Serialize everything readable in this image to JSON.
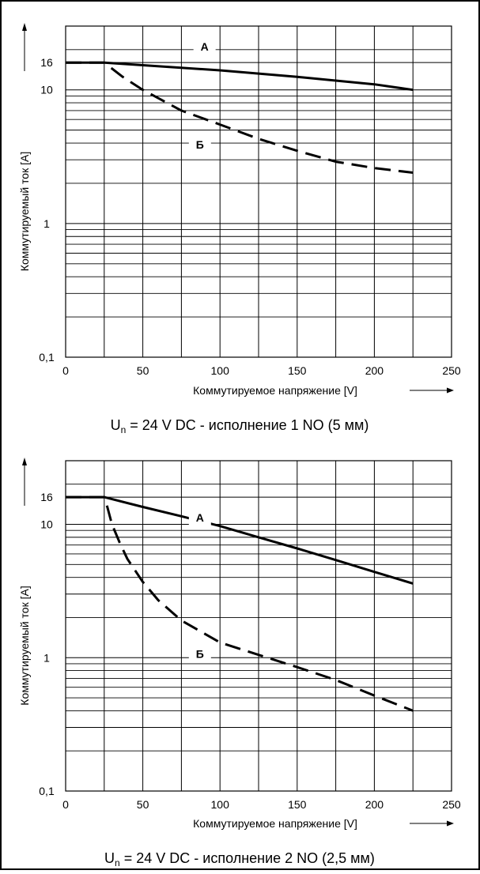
{
  "chart_data": [
    {
      "type": "line",
      "title": "",
      "caption_main": "U",
      "caption_sub": "n",
      "caption_rest": " = 24 V DC - исполнение 1 NO (5 мм)",
      "xlabel": "Коммутируемое напряжение [V]",
      "ylabel": "Коммутируемый ток [A]",
      "xlim": [
        0,
        250
      ],
      "ylim": [
        0.1,
        30
      ],
      "yscale": "log",
      "grid": true,
      "xticks": [
        "0",
        "50",
        "100",
        "150",
        "200",
        "250"
      ],
      "yticks": [
        {
          "value": 0.1,
          "label": "0,1"
        },
        {
          "value": 1,
          "label": "1"
        },
        {
          "value": 10,
          "label": "10"
        },
        {
          "value": 16,
          "label": "16"
        }
      ],
      "series": [
        {
          "name": "А",
          "style": "solid",
          "label_x": 90,
          "label_y": 21,
          "x": [
            0,
            25,
            50,
            100,
            150,
            200,
            225
          ],
          "y": [
            16,
            16,
            15.3,
            14,
            12.5,
            11,
            10
          ]
        },
        {
          "name": "Б",
          "style": "dashed",
          "label_x": 87,
          "label_y": 3.9,
          "x": [
            0,
            25,
            37,
            50,
            75,
            100,
            125,
            150,
            175,
            200,
            225
          ],
          "y": [
            16,
            16,
            12.5,
            10,
            7,
            5.5,
            4.3,
            3.5,
            2.9,
            2.6,
            2.4
          ]
        }
      ]
    },
    {
      "type": "line",
      "title": "",
      "caption_main": "U",
      "caption_sub": "n",
      "caption_rest": " = 24 V DC - исполнение 2 NO (2,5 мм)",
      "xlabel": "Коммутируемое напряжение [V]",
      "ylabel": "Коммутируемый ток [A]",
      "xlim": [
        0,
        250
      ],
      "ylim": [
        0.1,
        30
      ],
      "yscale": "log",
      "grid": true,
      "xticks": [
        "0",
        "50",
        "100",
        "150",
        "200",
        "250"
      ],
      "yticks": [
        {
          "value": 0.1,
          "label": "0,1"
        },
        {
          "value": 1,
          "label": "1"
        },
        {
          "value": 10,
          "label": "10"
        },
        {
          "value": 16,
          "label": "16"
        }
      ],
      "series": [
        {
          "name": "А",
          "style": "solid",
          "label_x": 87,
          "label_y": 11.2,
          "x": [
            0,
            25,
            50,
            75,
            100,
            125,
            150,
            175,
            200,
            225
          ],
          "y": [
            16,
            16,
            13.5,
            11.5,
            9.7,
            8.0,
            6.6,
            5.4,
            4.4,
            3.6
          ]
        },
        {
          "name": "Б",
          "style": "dashed",
          "label_x": 87,
          "label_y": 1.07,
          "x": [
            0,
            25,
            27,
            30,
            35,
            40,
            50,
            60,
            75,
            100,
            125,
            150,
            175,
            200,
            225
          ],
          "y": [
            16,
            16,
            13.5,
            10,
            7.3,
            5.5,
            3.7,
            2.7,
            1.9,
            1.3,
            1.05,
            0.85,
            0.68,
            0.52,
            0.4
          ]
        }
      ]
    }
  ]
}
